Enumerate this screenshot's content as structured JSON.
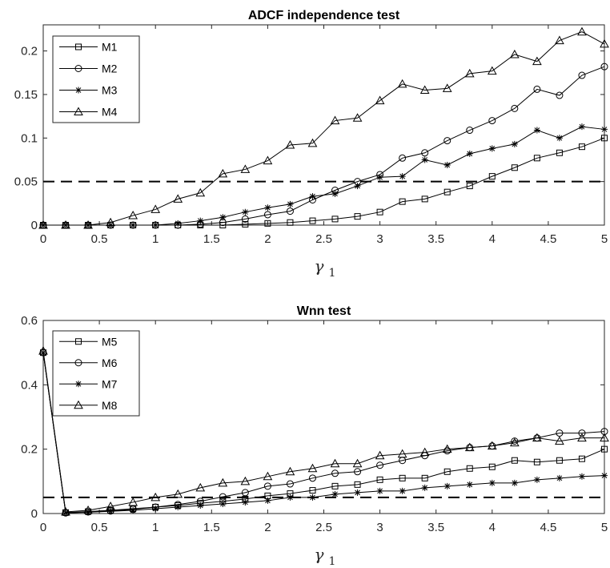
{
  "chart_data": [
    {
      "type": "line",
      "title": "ADCF independence test",
      "xlabel": "γ",
      "xlabel_sub": "1",
      "xlim": [
        0,
        5
      ],
      "ylim": [
        0,
        0.23
      ],
      "xticks": [
        0,
        0.5,
        1,
        1.5,
        2,
        2.5,
        3,
        3.5,
        4,
        4.5,
        5
      ],
      "xtick_labels": [
        "0",
        "0.5",
        "1",
        "1.5",
        "2",
        "2.5",
        "3",
        "3.5",
        "4",
        "4.5",
        "5"
      ],
      "yticks": [
        0,
        0.05,
        0.1,
        0.15,
        0.2
      ],
      "ytick_labels": [
        "0",
        "0.05",
        "0.1",
        "0.15",
        "0.2"
      ],
      "reference_line": 0.05,
      "legend_position": "top-left",
      "grid": false,
      "x": [
        0,
        0.2,
        0.4,
        0.6,
        0.8,
        1.0,
        1.2,
        1.4,
        1.6,
        1.8,
        2.0,
        2.2,
        2.4,
        2.6,
        2.8,
        3.0,
        3.2,
        3.4,
        3.6,
        3.8,
        4.0,
        4.2,
        4.4,
        4.6,
        4.8,
        5.0
      ],
      "series": [
        {
          "name": "M1",
          "marker": "square",
          "values": [
            0,
            0,
            0,
            0,
            0,
            0,
            0,
            0,
            0,
            0.001,
            0.002,
            0.003,
            0.005,
            0.007,
            0.01,
            0.015,
            0.027,
            0.03,
            0.038,
            0.045,
            0.056,
            0.066,
            0.077,
            0.083,
            0.09,
            0.1
          ]
        },
        {
          "name": "M2",
          "marker": "circle",
          "values": [
            0,
            0,
            0,
            0,
            0,
            0,
            0,
            0.001,
            0.003,
            0.007,
            0.012,
            0.016,
            0.029,
            0.04,
            0.05,
            0.058,
            0.077,
            0.083,
            0.097,
            0.109,
            0.12,
            0.134,
            0.156,
            0.149,
            0.172,
            0.182
          ]
        },
        {
          "name": "M3",
          "marker": "star",
          "values": [
            0,
            0,
            0,
            0,
            0,
            0,
            0.002,
            0.005,
            0.009,
            0.015,
            0.02,
            0.024,
            0.033,
            0.036,
            0.045,
            0.055,
            0.056,
            0.075,
            0.069,
            0.082,
            0.088,
            0.093,
            0.109,
            0.1,
            0.113,
            0.11
          ]
        },
        {
          "name": "M4",
          "marker": "triangle",
          "values": [
            0,
            0,
            0,
            0.003,
            0.011,
            0.018,
            0.03,
            0.037,
            0.059,
            0.064,
            0.074,
            0.092,
            0.094,
            0.12,
            0.123,
            0.143,
            0.162,
            0.155,
            0.157,
            0.174,
            0.177,
            0.196,
            0.188,
            0.212,
            0.222,
            0.208
          ]
        }
      ]
    },
    {
      "type": "line",
      "title": "Wnn test",
      "xlabel": "γ",
      "xlabel_sub": "1",
      "xlim": [
        0,
        5
      ],
      "ylim": [
        0,
        0.6
      ],
      "xticks": [
        0,
        0.5,
        1,
        1.5,
        2,
        2.5,
        3,
        3.5,
        4,
        4.5,
        5
      ],
      "xtick_labels": [
        "0",
        "0.5",
        "1",
        "1.5",
        "2",
        "2.5",
        "3",
        "3.5",
        "4",
        "4.5",
        "5"
      ],
      "yticks": [
        0,
        0.2,
        0.4,
        0.6
      ],
      "ytick_labels": [
        "0",
        "0.2",
        "0.4",
        "0.6"
      ],
      "reference_line": 0.05,
      "legend_position": "top-left",
      "grid": false,
      "x": [
        0,
        0.2,
        0.4,
        0.6,
        0.8,
        1.0,
        1.2,
        1.4,
        1.6,
        1.8,
        2.0,
        2.2,
        2.4,
        2.6,
        2.8,
        3.0,
        3.2,
        3.4,
        3.6,
        3.8,
        4.0,
        4.2,
        4.4,
        4.6,
        4.8,
        5.0
      ],
      "series": [
        {
          "name": "M5",
          "marker": "square",
          "values": [
            0.5,
            0.003,
            0.006,
            0.01,
            0.015,
            0.02,
            0.025,
            0.032,
            0.038,
            0.045,
            0.055,
            0.062,
            0.072,
            0.085,
            0.09,
            0.105,
            0.11,
            0.11,
            0.13,
            0.14,
            0.145,
            0.165,
            0.16,
            0.165,
            0.17,
            0.2
          ]
        },
        {
          "name": "M6",
          "marker": "circle",
          "values": [
            0.5,
            0.002,
            0.005,
            0.008,
            0.013,
            0.02,
            0.028,
            0.038,
            0.052,
            0.065,
            0.085,
            0.092,
            0.11,
            0.125,
            0.13,
            0.15,
            0.165,
            0.18,
            0.195,
            0.205,
            0.21,
            0.225,
            0.235,
            0.25,
            0.25,
            0.255
          ]
        },
        {
          "name": "M7",
          "marker": "star",
          "values": [
            0.5,
            0.002,
            0.004,
            0.007,
            0.01,
            0.015,
            0.02,
            0.025,
            0.03,
            0.035,
            0.04,
            0.05,
            0.05,
            0.06,
            0.065,
            0.07,
            0.07,
            0.08,
            0.085,
            0.09,
            0.095,
            0.095,
            0.105,
            0.11,
            0.115,
            0.118
          ]
        },
        {
          "name": "M8",
          "marker": "triangle",
          "values": [
            0.505,
            0.005,
            0.01,
            0.022,
            0.035,
            0.05,
            0.06,
            0.08,
            0.095,
            0.1,
            0.115,
            0.13,
            0.14,
            0.155,
            0.155,
            0.18,
            0.185,
            0.19,
            0.2,
            0.205,
            0.21,
            0.22,
            0.235,
            0.225,
            0.235,
            0.235
          ]
        }
      ]
    }
  ]
}
